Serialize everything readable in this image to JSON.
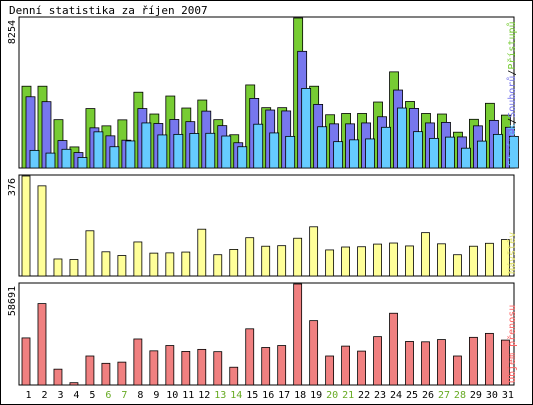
{
  "title": "Denní statistika za říjen 2007",
  "chart_data": [
    {
      "type": "bar",
      "panel": "top",
      "ymax_label": "8254",
      "ylim": [
        0,
        8254
      ],
      "legend": [
        "Stránek",
        "Souborů",
        "Přístupů"
      ],
      "legend_separator": "/",
      "legend_colors": [
        "#66ccff",
        "#7777ee",
        "#77cc33"
      ],
      "categories": [
        "1",
        "2",
        "3",
        "4",
        "5",
        "6",
        "7",
        "8",
        "9",
        "10",
        "11",
        "12",
        "13",
        "14",
        "15",
        "16",
        "17",
        "18",
        "19",
        "20",
        "21",
        "22",
        "23",
        "24",
        "25",
        "26",
        "27",
        "28",
        "29",
        "30",
        "31"
      ],
      "series": [
        {
          "name": "Přístupů",
          "color": "#77cc33",
          "values": [
            4500,
            4500,
            2660,
            1160,
            3270,
            2320,
            2650,
            4170,
            2970,
            3960,
            3300,
            3740,
            2660,
            1830,
            4570,
            3320,
            3320,
            8254,
            4500,
            2930,
            3000,
            3000,
            3630,
            5290,
            3660,
            3000,
            2970,
            1970,
            2680,
            3560,
            2910
          ]
        },
        {
          "name": "Souborů",
          "color": "#7777ee",
          "values": [
            3920,
            3650,
            1510,
            850,
            2210,
            1770,
            1530,
            3270,
            2450,
            2670,
            2550,
            3130,
            2330,
            1390,
            3830,
            3190,
            3140,
            6420,
            3500,
            2430,
            2430,
            2480,
            2820,
            4290,
            3280,
            2480,
            2510,
            1710,
            2320,
            2620,
            2240
          ]
        },
        {
          "name": "Stránek",
          "color": "#66ccff",
          "values": [
            970,
            820,
            1030,
            580,
            1990,
            1170,
            1490,
            2480,
            1820,
            1850,
            1900,
            1910,
            1760,
            1170,
            2410,
            1930,
            1740,
            4380,
            2270,
            1450,
            1550,
            1600,
            2240,
            3300,
            2000,
            1630,
            1700,
            1090,
            1480,
            1850,
            1740
          ]
        }
      ]
    },
    {
      "type": "bar",
      "panel": "middle",
      "ymax_label": "376",
      "ylim": [
        0,
        376
      ],
      "legend": [
        "Návštěv"
      ],
      "legend_colors": [
        "#dddd66"
      ],
      "categories": [
        "1",
        "2",
        "3",
        "4",
        "5",
        "6",
        "7",
        "8",
        "9",
        "10",
        "11",
        "12",
        "13",
        "14",
        "15",
        "16",
        "17",
        "18",
        "19",
        "20",
        "21",
        "22",
        "23",
        "24",
        "25",
        "26",
        "27",
        "28",
        "29",
        "30",
        "31"
      ],
      "series": [
        {
          "name": "Návštěv",
          "color": "#ffff99",
          "values": [
            376,
            339,
            64,
            62,
            170,
            91,
            77,
            128,
            86,
            87,
            90,
            176,
            80,
            100,
            144,
            112,
            114,
            142,
            185,
            98,
            109,
            110,
            120,
            124,
            113,
            163,
            121,
            80,
            112,
            123,
            137
          ]
        }
      ]
    },
    {
      "type": "bar",
      "panel": "bottom",
      "ymax_label": "58691",
      "ylim": [
        0,
        58691
      ],
      "legend": [
        "Objem přenosu"
      ],
      "legend_colors": [
        "#ff6666"
      ],
      "categories": [
        "1",
        "2",
        "3",
        "4",
        "5",
        "6",
        "7",
        "8",
        "9",
        "10",
        "11",
        "12",
        "13",
        "14",
        "15",
        "16",
        "17",
        "18",
        "19",
        "20",
        "21",
        "22",
        "23",
        "24",
        "25",
        "26",
        "27",
        "28",
        "29",
        "30",
        "31"
      ],
      "series": [
        {
          "name": "Objem přenosu",
          "color": "#f08080",
          "values": [
            27360,
            47300,
            9200,
            1340,
            16850,
            12600,
            13290,
            26740,
            19850,
            22930,
            19510,
            20700,
            19370,
            10330,
            32650,
            21800,
            22930,
            58691,
            37400,
            16850,
            22600,
            19700,
            28100,
            41700,
            25300,
            25100,
            26400,
            16850,
            27700,
            30000,
            26100
          ]
        }
      ]
    }
  ],
  "weekend_days": [
    "6",
    "7",
    "13",
    "14",
    "20",
    "21",
    "27",
    "28"
  ],
  "colors": {
    "weekday_label": "#000000",
    "weekend_label": "#66aa22",
    "frame": "#000000"
  }
}
